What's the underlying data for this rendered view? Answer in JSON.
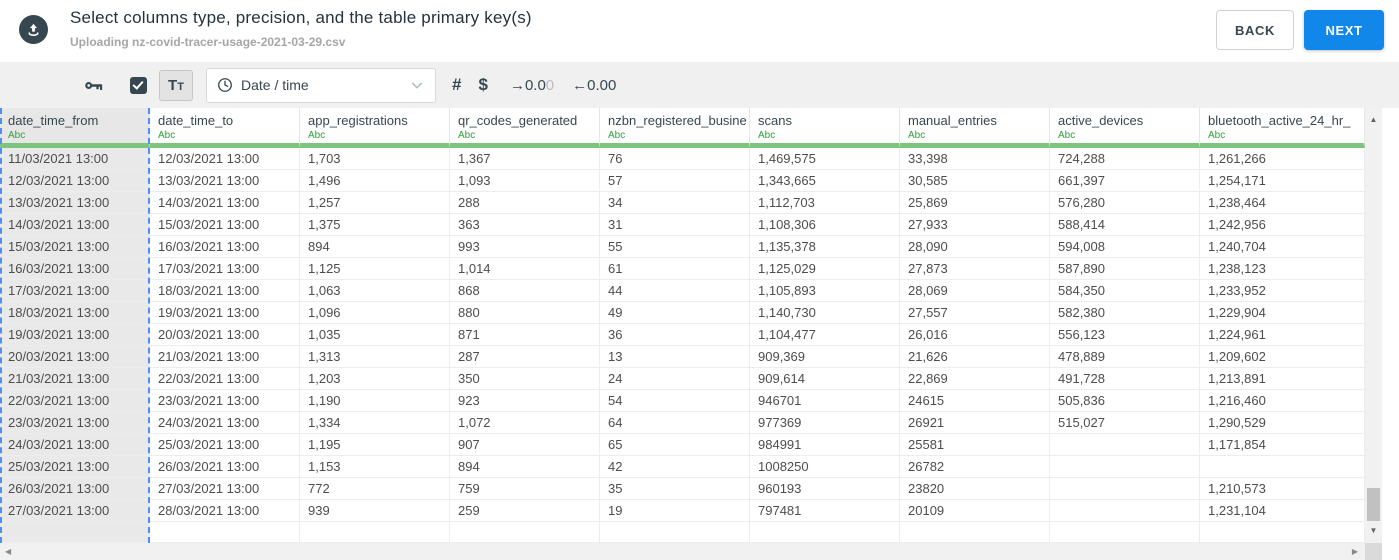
{
  "header": {
    "title": "Select columns type, precision, and the table primary key(s)",
    "subtitle": "Uploading nz-covid-tracer-usage-2021-03-29.csv",
    "buttons": {
      "back": "BACK",
      "next": "NEXT"
    }
  },
  "toolbar": {
    "text_type_label": "Tt",
    "datetime_select_value": "Date / time",
    "number_type_label": "#",
    "currency_type_label": "$",
    "increase_decimal": {
      "text": "→0.0",
      "muted": "0"
    },
    "decrease_decimal": {
      "text": "←0.00"
    }
  },
  "grid": {
    "type_tag": "Abc",
    "selected_column": "date_time_from",
    "columns": [
      "date_time_from",
      "date_time_to",
      "app_registrations",
      "qr_codes_generated",
      "nzbn_registered_busine",
      "scans",
      "manual_entries",
      "active_devices",
      "bluetooth_active_24_hr_"
    ],
    "rows": [
      [
        "11/03/2021 13:00",
        "12/03/2021 13:00",
        "1,703",
        "1,367",
        "76",
        "1,469,575",
        "33,398",
        "724,288",
        "1,261,266"
      ],
      [
        "12/03/2021 13:00",
        "13/03/2021 13:00",
        "1,496",
        "1,093",
        "57",
        "1,343,665",
        "30,585",
        "661,397",
        "1,254,171"
      ],
      [
        "13/03/2021 13:00",
        "14/03/2021 13:00",
        "1,257",
        "288",
        "34",
        "1,112,703",
        "25,869",
        "576,280",
        "1,238,464"
      ],
      [
        "14/03/2021 13:00",
        "15/03/2021 13:00",
        "1,375",
        "363",
        "31",
        "1,108,306",
        "27,933",
        "588,414",
        "1,242,956"
      ],
      [
        "15/03/2021 13:00",
        "16/03/2021 13:00",
        "894",
        "993",
        "55",
        "1,135,378",
        "28,090",
        "594,008",
        "1,240,704"
      ],
      [
        "16/03/2021 13:00",
        "17/03/2021 13:00",
        "1,125",
        "1,014",
        "61",
        "1,125,029",
        "27,873",
        "587,890",
        "1,238,123"
      ],
      [
        "17/03/2021 13:00",
        "18/03/2021 13:00",
        "1,063",
        "868",
        "44",
        "1,105,893",
        "28,069",
        "584,350",
        "1,233,952"
      ],
      [
        "18/03/2021 13:00",
        "19/03/2021 13:00",
        "1,096",
        "880",
        "49",
        "1,140,730",
        "27,557",
        "582,380",
        "1,229,904"
      ],
      [
        "19/03/2021 13:00",
        "20/03/2021 13:00",
        "1,035",
        "871",
        "36",
        "1,104,477",
        "26,016",
        "556,123",
        "1,224,961"
      ],
      [
        "20/03/2021 13:00",
        "21/03/2021 13:00",
        "1,313",
        "287",
        "13",
        "909,369",
        "21,626",
        "478,889",
        "1,209,602"
      ],
      [
        "21/03/2021 13:00",
        "22/03/2021 13:00",
        "1,203",
        "350",
        "24",
        "909,614",
        "22,869",
        "491,728",
        "1,213,891"
      ],
      [
        "22/03/2021 13:00",
        "23/03/2021 13:00",
        "1,190",
        "923",
        "54",
        "946701",
        "24615",
        "505,836",
        "1,216,460"
      ],
      [
        "23/03/2021 13:00",
        "24/03/2021 13:00",
        "1,334",
        "1,072",
        "64",
        "977369",
        "26921",
        "515,027",
        "1,290,529"
      ],
      [
        "24/03/2021 13:00",
        "25/03/2021 13:00",
        "1,195",
        "907",
        "65",
        "984991",
        "25581",
        "",
        "1,171,854"
      ],
      [
        "25/03/2021 13:00",
        "26/03/2021 13:00",
        "1,153",
        "894",
        "42",
        "1008250",
        "26782",
        "",
        ""
      ],
      [
        "26/03/2021 13:00",
        "27/03/2021 13:00",
        "772",
        "759",
        "35",
        "960193",
        "23820",
        "",
        "1,210,573"
      ],
      [
        "27/03/2021 13:00",
        "28/03/2021 13:00",
        "939",
        "259",
        "19",
        "797481",
        "20109",
        "",
        "1,231,104"
      ]
    ]
  },
  "scrollbars": {
    "up": "▲",
    "down": "▼",
    "left": "◀",
    "right": "▶"
  },
  "colors": {
    "primary_blue": "#1187e9",
    "dark_slate": "#37474f",
    "header_green_bar": "#7dc57f",
    "type_tag_green": "#2fa139",
    "selection_dash_blue": "#4f8ef7",
    "toolbar_bg": "#f0f0f0",
    "selected_column_bg": "#e9e9e9"
  }
}
